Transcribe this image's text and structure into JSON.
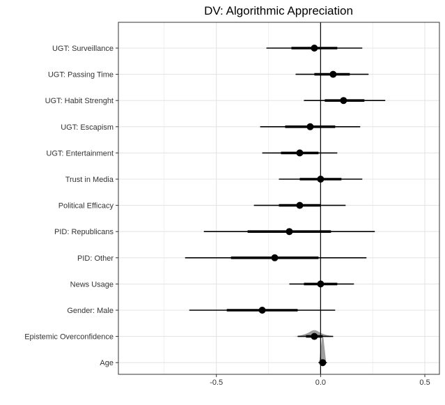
{
  "chart_data": {
    "type": "coefficient-plot",
    "title": "DV: Algorithmic Appreciation",
    "xlabel": "",
    "ylabel": "",
    "xlim": [
      -0.97,
      0.57
    ],
    "xticks": [
      -0.5,
      0.0,
      0.5
    ],
    "xtick_labels": [
      "-0.5",
      "0.0",
      "0.5"
    ],
    "grid": true,
    "reference_line": 0,
    "colors": {
      "mark": "#000000",
      "grid": "#e5e5e5",
      "density": "#9e9e9e",
      "panel_border": "#333333"
    },
    "terms": [
      {
        "label": "UGT: Surveillance",
        "estimate": -0.03,
        "ci_inner": [
          -0.14,
          0.08
        ],
        "ci_outer": [
          -0.26,
          0.2
        ]
      },
      {
        "label": "UGT: Passing Time",
        "estimate": 0.06,
        "ci_inner": [
          -0.03,
          0.14
        ],
        "ci_outer": [
          -0.12,
          0.23
        ]
      },
      {
        "label": "UGT: Habit Strenght",
        "estimate": 0.11,
        "ci_inner": [
          0.02,
          0.21
        ],
        "ci_outer": [
          -0.08,
          0.31
        ]
      },
      {
        "label": "UGT: Escapism",
        "estimate": -0.05,
        "ci_inner": [
          -0.17,
          0.07
        ],
        "ci_outer": [
          -0.29,
          0.19
        ]
      },
      {
        "label": "UGT: Entertainment",
        "estimate": -0.1,
        "ci_inner": [
          -0.19,
          -0.01
        ],
        "ci_outer": [
          -0.28,
          0.08
        ]
      },
      {
        "label": "Trust in Media",
        "estimate": 0.0,
        "ci_inner": [
          -0.1,
          0.1
        ],
        "ci_outer": [
          -0.2,
          0.2
        ]
      },
      {
        "label": "Political Efficacy",
        "estimate": -0.1,
        "ci_inner": [
          -0.2,
          0.0
        ],
        "ci_outer": [
          -0.32,
          0.12
        ]
      },
      {
        "label": "PID: Republicans",
        "estimate": -0.15,
        "ci_inner": [
          -0.35,
          0.05
        ],
        "ci_outer": [
          -0.56,
          0.26
        ]
      },
      {
        "label": "PID: Other",
        "estimate": -0.22,
        "ci_inner": [
          -0.43,
          -0.01
        ],
        "ci_outer": [
          -0.65,
          0.22
        ]
      },
      {
        "label": "News Usage",
        "estimate": 0.0,
        "ci_inner": [
          -0.08,
          0.08
        ],
        "ci_outer": [
          -0.15,
          0.16
        ]
      },
      {
        "label": "Gender: Male",
        "estimate": -0.28,
        "ci_inner": [
          -0.45,
          -0.11
        ],
        "ci_outer": [
          -0.63,
          0.07
        ]
      },
      {
        "label": "Epistemic Overconfidence",
        "estimate": -0.03,
        "ci_inner": [
          -0.07,
          0.01
        ],
        "ci_outer": [
          -0.11,
          0.06
        ],
        "density": true
      },
      {
        "label": "Age",
        "estimate": 0.01,
        "ci_inner": [
          0.0,
          0.02
        ],
        "ci_outer": [
          -0.01,
          0.03
        ],
        "density": true
      }
    ]
  }
}
